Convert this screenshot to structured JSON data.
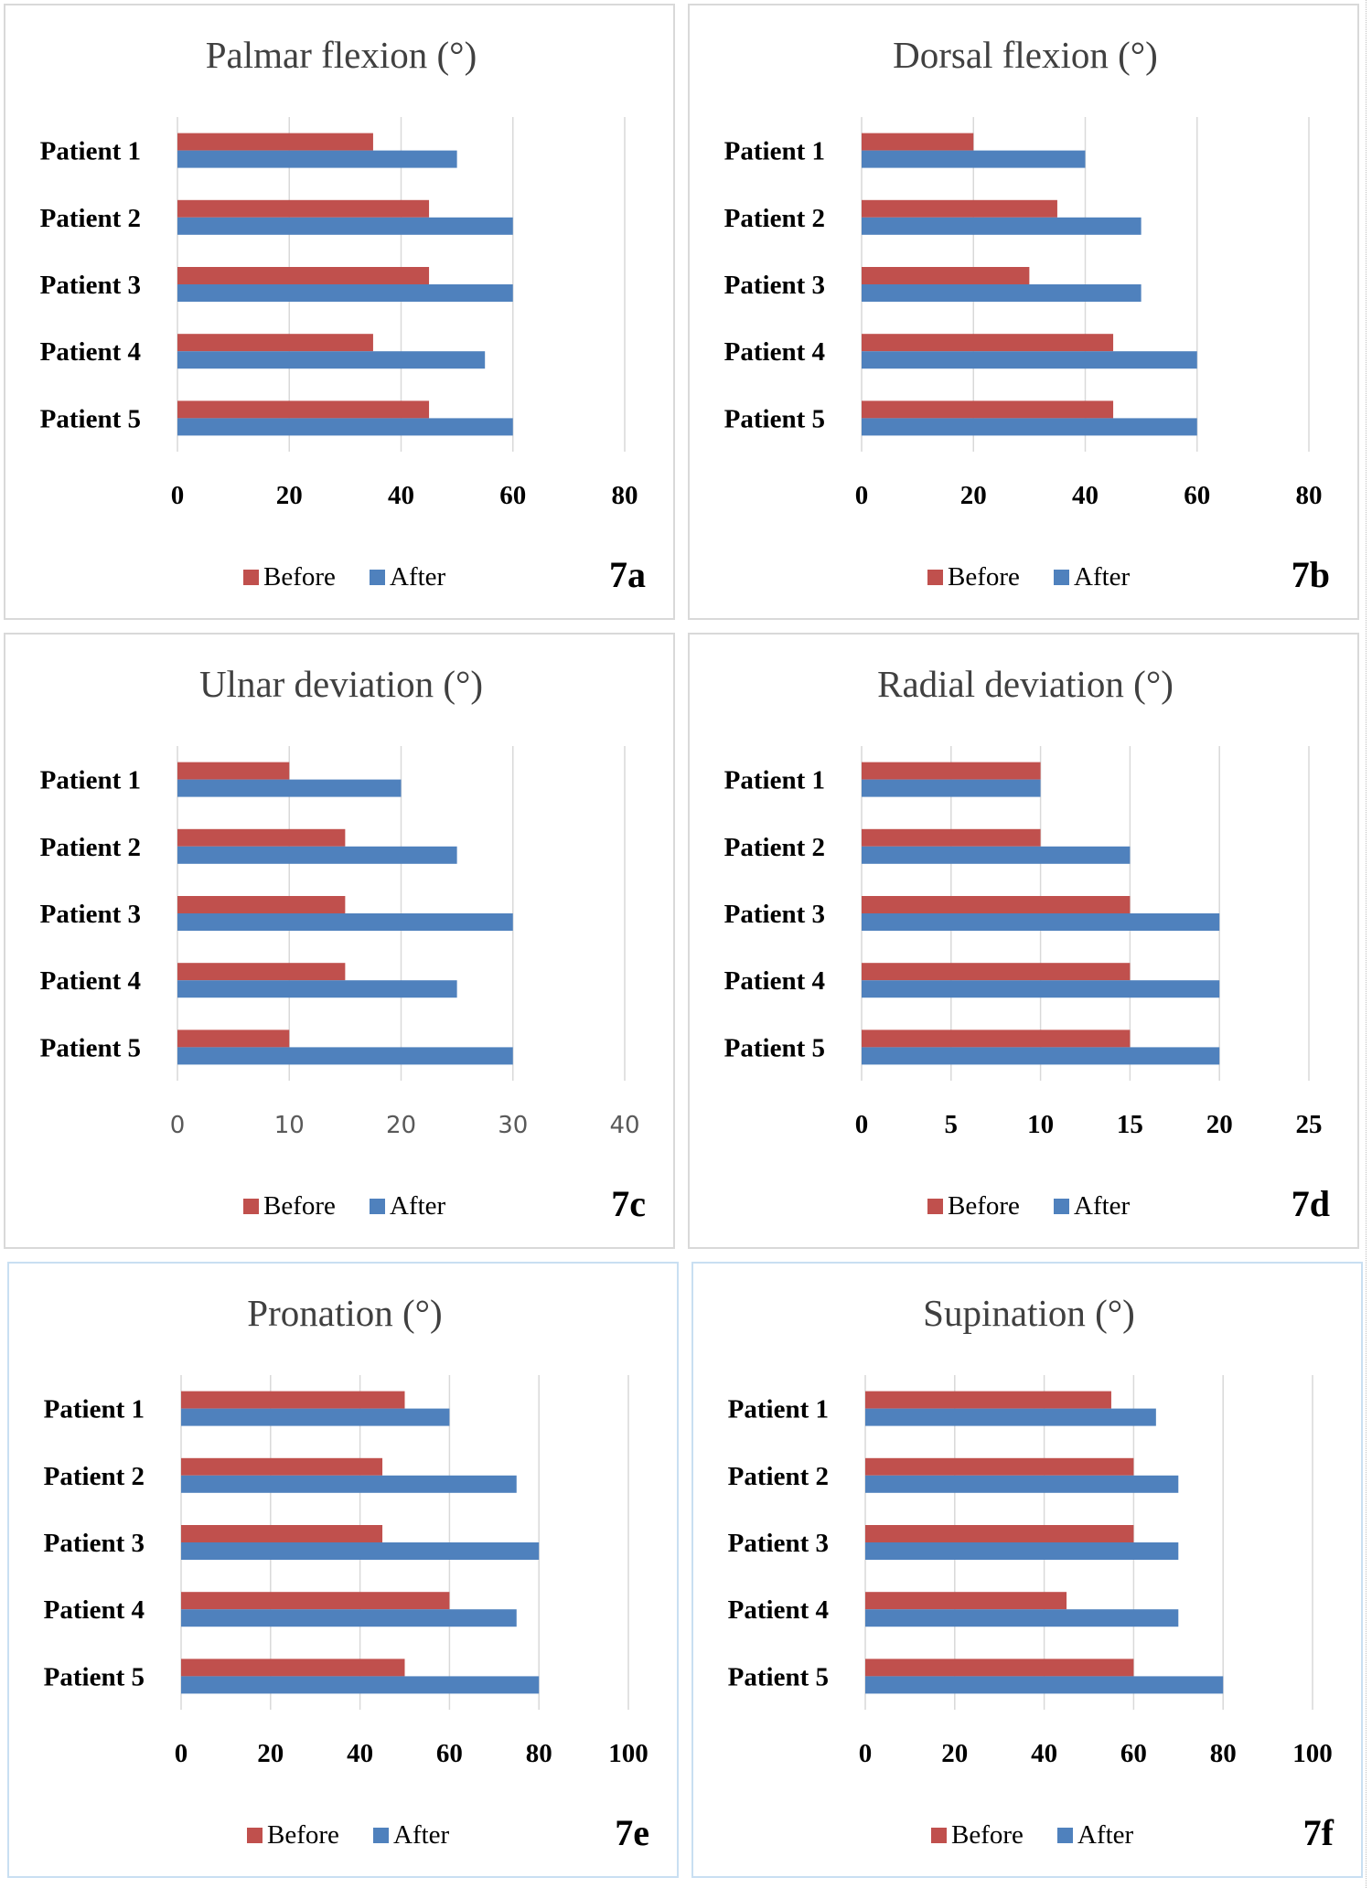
{
  "colors": {
    "before": "#c0504d",
    "after": "#4f81bd",
    "grid": "#d9d9d9"
  },
  "chart_data": [
    {
      "type": "bar",
      "title": "Palmar flexion (°)",
      "categories": [
        "Patient 1",
        "Patient 2",
        "Patient 3",
        "Patient 4",
        "Patient 5"
      ],
      "series": [
        {
          "name": "Before",
          "values": [
            35,
            45,
            45,
            35,
            45
          ]
        },
        {
          "name": "After",
          "values": [
            50,
            60,
            60,
            55,
            60
          ]
        }
      ],
      "xlim": [
        0,
        80
      ],
      "ticks": [
        "0",
        "20",
        "40",
        "60",
        "80"
      ],
      "grid": true,
      "legend": "bottom",
      "label": "7a"
    },
    {
      "type": "bar",
      "title": "Dorsal flexion (°)",
      "categories": [
        "Patient 1",
        "Patient 2",
        "Patient 3",
        "Patient 4",
        "Patient 5"
      ],
      "series": [
        {
          "name": "Before",
          "values": [
            20,
            35,
            30,
            45,
            45
          ]
        },
        {
          "name": "After",
          "values": [
            40,
            50,
            50,
            60,
            60
          ]
        }
      ],
      "xlim": [
        0,
        80
      ],
      "ticks": [
        "0",
        "20",
        "40",
        "60",
        "80"
      ],
      "grid": true,
      "legend": "bottom",
      "label": "7b"
    },
    {
      "type": "bar",
      "title": "Ulnar deviation (°)",
      "categories": [
        "Patient 1",
        "Patient 2",
        "Patient 3",
        "Patient 4",
        "Patient 5"
      ],
      "series": [
        {
          "name": "Before",
          "values": [
            10,
            15,
            15,
            15,
            10
          ]
        },
        {
          "name": "After",
          "values": [
            20,
            25,
            30,
            25,
            30
          ]
        }
      ],
      "xlim": [
        0,
        40
      ],
      "ticks": [
        "0",
        "10",
        "20",
        "30",
        "40"
      ],
      "grid": true,
      "legend": "bottom",
      "label": "7c"
    },
    {
      "type": "bar",
      "title": "Radial deviation (°)",
      "categories": [
        "Patient 1",
        "Patient 2",
        "Patient 3",
        "Patient 4",
        "Patient 5"
      ],
      "series": [
        {
          "name": "Before",
          "values": [
            10,
            10,
            15,
            15,
            15
          ]
        },
        {
          "name": "After",
          "values": [
            10,
            15,
            20,
            20,
            20
          ]
        }
      ],
      "xlim": [
        0,
        25
      ],
      "ticks": [
        "0",
        "5",
        "10",
        "15",
        "20",
        "25"
      ],
      "grid": true,
      "legend": "bottom",
      "label": "7d"
    },
    {
      "type": "bar",
      "title": "Pronation (°)",
      "categories": [
        "Patient 1",
        "Patient 2",
        "Patient 3",
        "Patient 4",
        "Patient 5"
      ],
      "series": [
        {
          "name": "Before",
          "values": [
            50,
            45,
            45,
            60,
            50
          ]
        },
        {
          "name": "After",
          "values": [
            60,
            75,
            80,
            75,
            80
          ]
        }
      ],
      "xlim": [
        0,
        100
      ],
      "ticks": [
        "0",
        "20",
        "40",
        "60",
        "80",
        "100"
      ],
      "grid": true,
      "legend": "bottom",
      "label": "7e"
    },
    {
      "type": "bar",
      "title": "Supination (°)",
      "categories": [
        "Patient 1",
        "Patient 2",
        "Patient 3",
        "Patient 4",
        "Patient 5"
      ],
      "series": [
        {
          "name": "Before",
          "values": [
            55,
            60,
            60,
            45,
            60
          ]
        },
        {
          "name": "After",
          "values": [
            65,
            70,
            70,
            70,
            80
          ]
        }
      ],
      "xlim": [
        0,
        100
      ],
      "ticks": [
        "0",
        "20",
        "40",
        "60",
        "80",
        "100"
      ],
      "grid": true,
      "legend": "bottom",
      "label": "7f"
    }
  ]
}
